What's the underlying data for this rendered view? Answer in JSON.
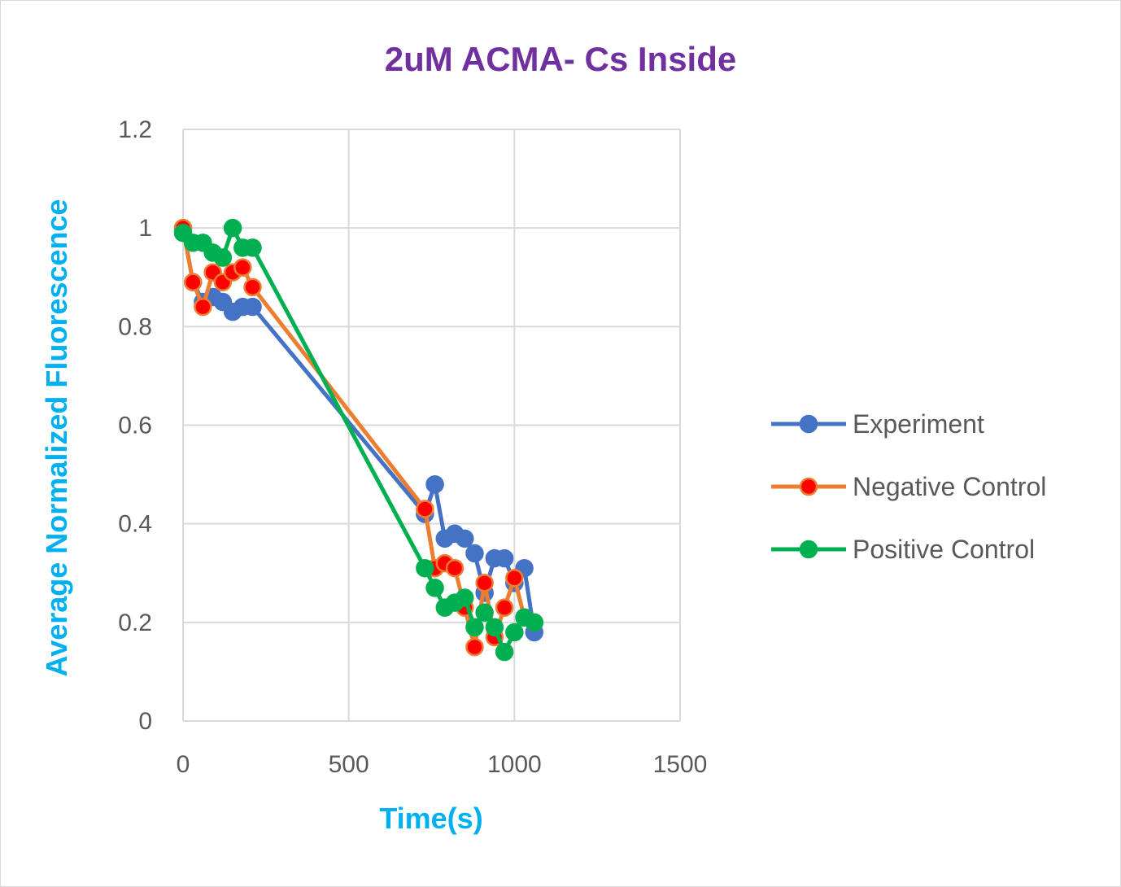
{
  "chart_data": {
    "type": "line",
    "title": "2uM ACMA- Cs Inside",
    "xlabel": "Time(s)",
    "ylabel": "Average Normalized Fluorescence",
    "xlim": [
      0,
      1500
    ],
    "ylim": [
      0,
      1.2
    ],
    "x_ticks": [
      "0",
      "500",
      "1000",
      "1500"
    ],
    "y_ticks": [
      "0",
      "0.2",
      "0.4",
      "0.6",
      "0.8",
      "1",
      "1.2"
    ],
    "grid": true,
    "legend_position": "right",
    "colors": {
      "title": "#7030a0",
      "axis_label": "#00b0f0",
      "grid": "#d9d9d9"
    },
    "series": [
      {
        "name": "Experiment",
        "line_color": "#4472c4",
        "marker_fill": "#4472c4",
        "marker_stroke": "#4472c4",
        "x": [
          0,
          30,
          60,
          90,
          120,
          150,
          180,
          210,
          730,
          760,
          790,
          820,
          850,
          880,
          910,
          940,
          970,
          1000,
          1030,
          1060
        ],
        "y": [
          1.0,
          0.89,
          0.85,
          0.86,
          0.85,
          0.83,
          0.84,
          0.84,
          0.42,
          0.48,
          0.37,
          0.38,
          0.37,
          0.34,
          0.26,
          0.33,
          0.33,
          0.28,
          0.31,
          0.18
        ]
      },
      {
        "name": "Negative Control",
        "line_color": "#ed7d31",
        "marker_fill": "#ff0000",
        "marker_stroke": "#ed7d31",
        "x": [
          0,
          30,
          60,
          90,
          120,
          150,
          180,
          210,
          730,
          760,
          790,
          820,
          850,
          880,
          910,
          940,
          970,
          1000,
          1030,
          1060
        ],
        "y": [
          1.0,
          0.89,
          0.84,
          0.91,
          0.89,
          0.91,
          0.92,
          0.88,
          0.43,
          0.31,
          0.32,
          0.31,
          0.23,
          0.15,
          0.28,
          0.17,
          0.23,
          0.29,
          0.21,
          0.2
        ]
      },
      {
        "name": "Positive Control",
        "line_color": "#00b050",
        "marker_fill": "#00b050",
        "marker_stroke": "#00b050",
        "x": [
          0,
          30,
          60,
          90,
          120,
          150,
          180,
          210,
          730,
          760,
          790,
          820,
          850,
          880,
          910,
          940,
          970,
          1000,
          1030,
          1060
        ],
        "y": [
          0.99,
          0.97,
          0.97,
          0.95,
          0.94,
          1.0,
          0.96,
          0.96,
          0.31,
          0.27,
          0.23,
          0.24,
          0.25,
          0.19,
          0.22,
          0.19,
          0.14,
          0.18,
          0.21,
          0.2
        ]
      }
    ]
  }
}
